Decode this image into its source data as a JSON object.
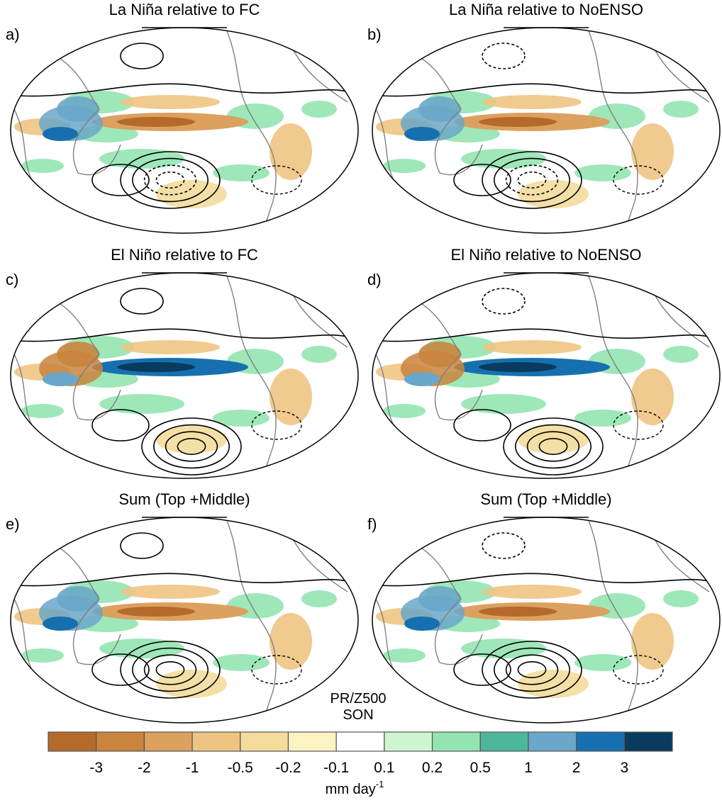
{
  "panels": [
    {
      "label": "a)",
      "title": "La Niña relative to FC"
    },
    {
      "label": "b)",
      "title": "La Niña relative to NoENSO"
    },
    {
      "label": "c)",
      "title": "El Niño relative to FC"
    },
    {
      "label": "d)",
      "title": "El Niño relative to NoENSO"
    },
    {
      "label": "e)",
      "title": "Sum (Top +Middle)"
    },
    {
      "label": "f)",
      "title": "Sum (Top +Middle)"
    }
  ],
  "annotation": {
    "variable": "PR/Z500",
    "season": "SON"
  },
  "colorbar": {
    "colors": [
      "#b46a2a",
      "#c9843d",
      "#dca05f",
      "#eec482",
      "#f3dc9c",
      "#fdf3c2",
      "#ffffff",
      "#cdf6d0",
      "#93e4b1",
      "#4db79a",
      "#6aa7c8",
      "#1670b0",
      "#083b5e"
    ],
    "ticks": [
      -3,
      -2,
      -1,
      -0.5,
      -0.2,
      -0.1,
      0.1,
      0.2,
      0.5,
      1,
      2,
      3
    ],
    "units": {
      "text": "mm day",
      "superscript": "-1"
    }
  }
}
